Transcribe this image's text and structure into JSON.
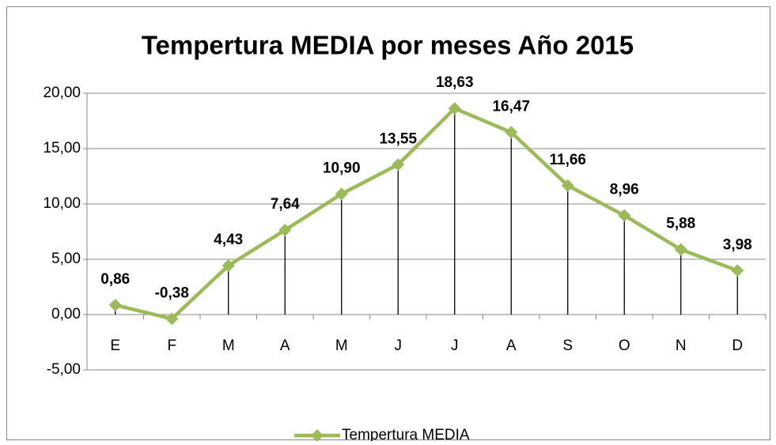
{
  "chart_data": {
    "type": "line",
    "title": "Tempertura MEDIA por meses Año 2015",
    "categories": [
      "E",
      "F",
      "M",
      "A",
      "M",
      "J",
      "J",
      "A",
      "S",
      "O",
      "N",
      "D"
    ],
    "series": [
      {
        "name": "Tempertura MEDIA",
        "color": "#9bbb59",
        "values": [
          0.86,
          -0.38,
          4.43,
          7.64,
          10.9,
          13.55,
          18.63,
          16.47,
          11.66,
          8.96,
          5.88,
          3.98
        ],
        "value_labels": [
          "0,86",
          "-0,38",
          "4,43",
          "7,64",
          "10,90",
          "13,55",
          "18,63",
          "16,47",
          "11,66",
          "8,96",
          "5,88",
          "3,98"
        ]
      }
    ],
    "ylim": [
      -5,
      20
    ],
    "yticks": [
      {
        "value": -5,
        "label": "-5,00"
      },
      {
        "value": 0,
        "label": "0,00"
      },
      {
        "value": 5,
        "label": "5,00"
      },
      {
        "value": 10,
        "label": "10,00"
      },
      {
        "value": 15,
        "label": "15,00"
      },
      {
        "value": 20,
        "label": "20,00"
      }
    ],
    "grid": true,
    "drop_lines": true,
    "legend": "bottom"
  }
}
